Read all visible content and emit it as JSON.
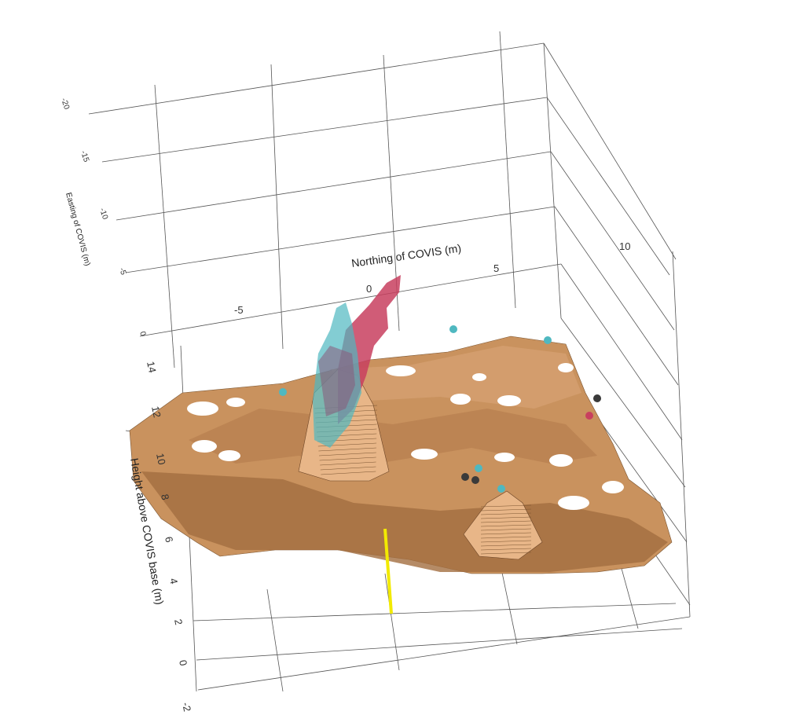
{
  "chart_data": {
    "type": "surface3d",
    "title": "",
    "axes": {
      "northing": {
        "label": "Northing of COVIS (m)",
        "ticks": [
          -5,
          0,
          5,
          10
        ]
      },
      "easting": {
        "label": "Easting of COVIS (m)",
        "ticks": [
          -20,
          -15,
          -10,
          -5,
          0
        ]
      },
      "height": {
        "label": "Height above COVIS base (m)",
        "ticks": [
          -2,
          0,
          2,
          4,
          6,
          8,
          10,
          12,
          14
        ]
      }
    },
    "grid": true,
    "surfaces": [
      {
        "name_hidden": "seafloor bathymetry",
        "color": "#c9925e"
      },
      {
        "name_hidden": "plume isosurface (high)",
        "color": "#c8405f"
      },
      {
        "name_hidden": "plume isosurface (low)",
        "color": "#4fb8c0"
      }
    ],
    "marker_color": "#f2ea00"
  }
}
